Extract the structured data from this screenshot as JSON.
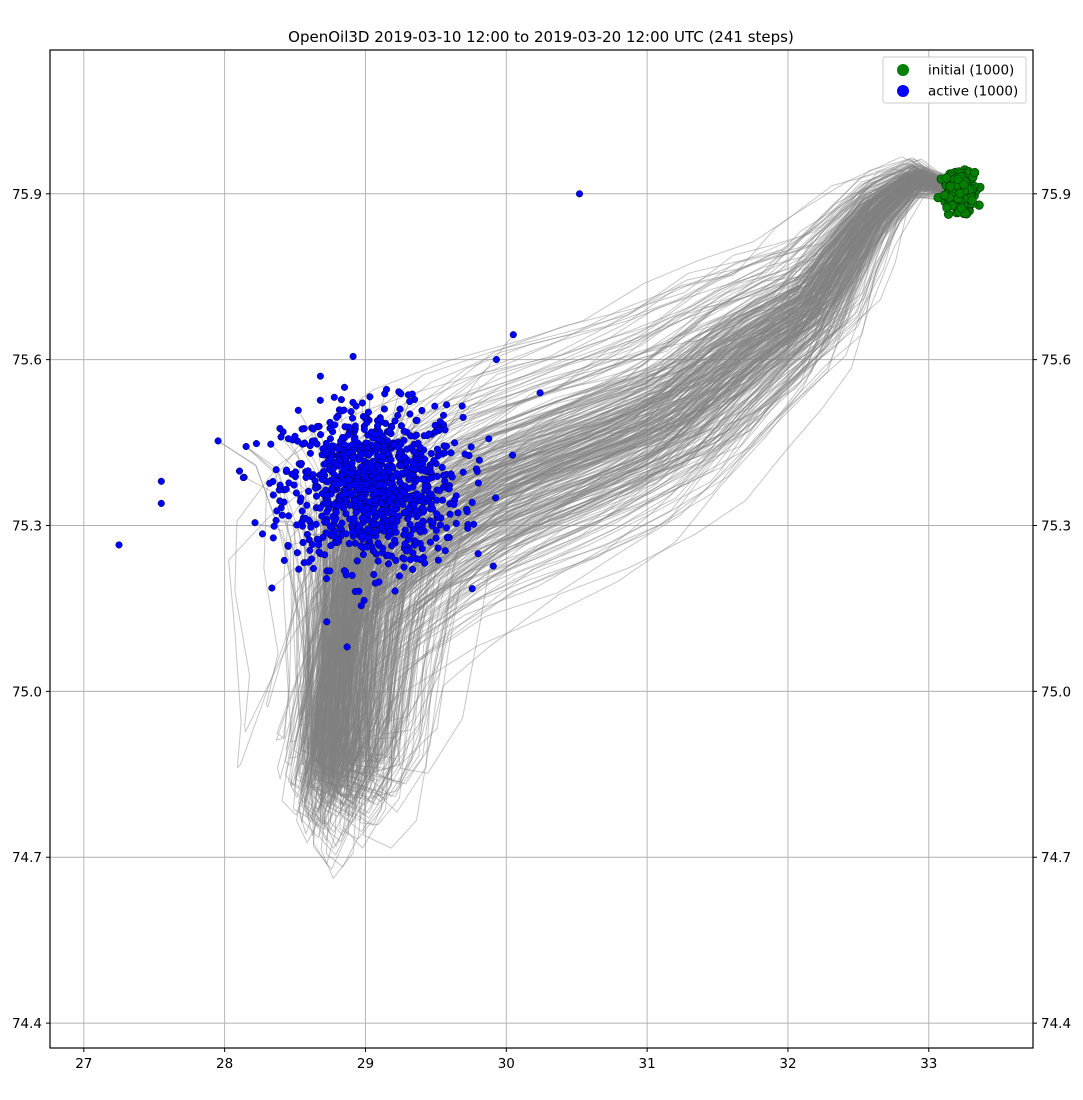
{
  "chart_data": {
    "type": "scatter",
    "title": "OpenOil3D  2019-03-10 12:00 to 2019-03-20 12:00 UTC (241 steps)",
    "xlabel": "",
    "ylabel": "",
    "xlim": [
      26.76,
      33.74
    ],
    "ylim": [
      74.355,
      76.16
    ],
    "x_ticks": [
      "27",
      "28",
      "29",
      "30",
      "31",
      "32",
      "33"
    ],
    "y_ticks": [
      "74.4",
      "74.7",
      "75.0",
      "75.3",
      "75.6",
      "75.9"
    ],
    "grid": true,
    "legend_position": "top-right",
    "colors": {
      "initial": "#008000",
      "active": "#0000ff",
      "trajectory": "#808080"
    },
    "series": [
      {
        "name": "initial (1000)",
        "count": 1000,
        "center": [
          33.22,
          75.905
        ],
        "spread": [
          0.06,
          0.018
        ]
      },
      {
        "name": "active (1000)",
        "count": 1000,
        "cluster_center": [
          29.05,
          75.37
        ],
        "spread": [
          0.3,
          0.06
        ],
        "outliers": [
          [
            27.25,
            75.265
          ],
          [
            27.55,
            75.38
          ],
          [
            27.55,
            75.34
          ],
          [
            30.52,
            75.9
          ],
          [
            30.05,
            75.645
          ],
          [
            30.24,
            75.54
          ],
          [
            29.93,
            75.6
          ],
          [
            28.97,
            75.155
          ],
          [
            28.68,
            75.57
          ]
        ]
      }
    ],
    "trajectory_path": [
      [
        33.22,
        75.905
      ],
      [
        32.9,
        75.93
      ],
      [
        32.6,
        75.87
      ],
      [
        32.35,
        75.78
      ],
      [
        32.15,
        75.7
      ],
      [
        31.85,
        75.65
      ],
      [
        31.55,
        75.6
      ],
      [
        31.2,
        75.52
      ],
      [
        30.8,
        75.47
      ],
      [
        30.3,
        75.42
      ],
      [
        29.8,
        75.37
      ],
      [
        29.3,
        75.28
      ],
      [
        29.0,
        75.2
      ],
      [
        28.95,
        75.08
      ],
      [
        28.92,
        74.93
      ],
      [
        28.8,
        74.85
      ],
      [
        28.7,
        74.86
      ],
      [
        28.72,
        74.98
      ],
      [
        28.8,
        75.12
      ],
      [
        28.95,
        75.28
      ],
      [
        29.05,
        75.37
      ]
    ]
  }
}
